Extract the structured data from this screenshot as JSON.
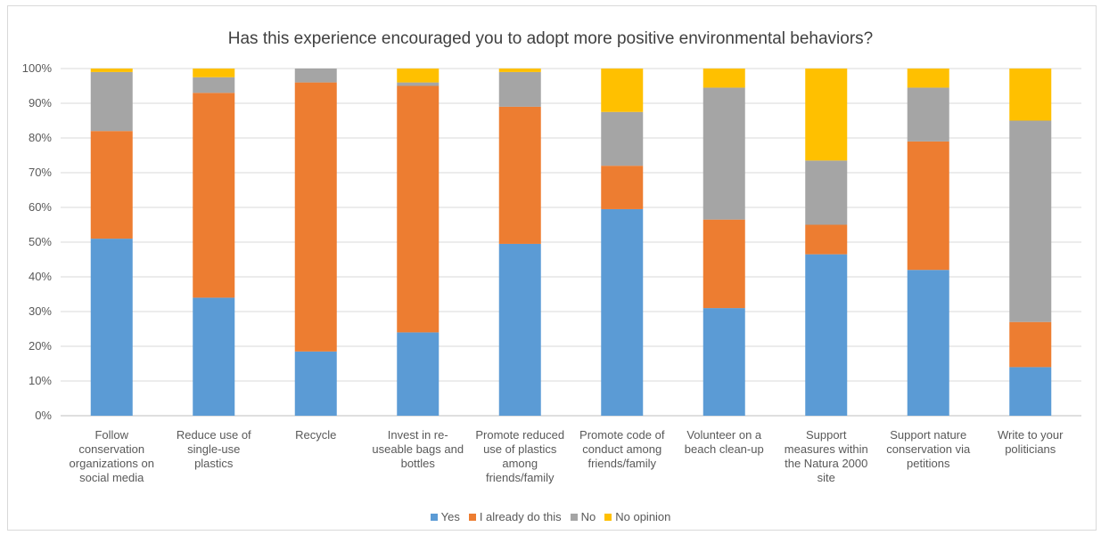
{
  "chart_data": {
    "type": "bar",
    "stacked": true,
    "percent_stacked": true,
    "title": "Has this experience encouraged you to adopt more positive environmental behaviors?",
    "y_ticks": [
      "0%",
      "10%",
      "20%",
      "30%",
      "40%",
      "50%",
      "60%",
      "70%",
      "80%",
      "90%",
      "100%"
    ],
    "ylim": [
      0,
      100
    ],
    "grid": true,
    "legend_position": "bottom",
    "categories": [
      [
        "Follow",
        "conservation",
        "organizations on",
        "social media"
      ],
      [
        "Reduce use of",
        "single-use",
        "plastics"
      ],
      [
        "Recycle"
      ],
      [
        "Invest in re-",
        "useable bags and",
        "bottles"
      ],
      [
        "Promote reduced",
        "use of plastics",
        "among",
        "friends/family"
      ],
      [
        "Promote code of",
        "conduct among",
        "friends/family"
      ],
      [
        "Volunteer on a",
        "beach clean-up"
      ],
      [
        "Support",
        "measures within",
        "the Natura 2000",
        "site"
      ],
      [
        "Support nature",
        "conservation via",
        "petitions"
      ],
      [
        "Write to your",
        "politicians"
      ]
    ],
    "series": [
      {
        "name": "Yes",
        "color": "#5b9bd5",
        "values": [
          51,
          34,
          18.5,
          24,
          49.5,
          59.5,
          31,
          46.5,
          42,
          14
        ]
      },
      {
        "name": "I already do this",
        "color": "#ed7d31",
        "values": [
          31,
          59,
          77.5,
          71,
          39.5,
          12.5,
          25.5,
          8.5,
          37,
          13
        ]
      },
      {
        "name": "No",
        "color": "#a5a5a5",
        "values": [
          17,
          4.5,
          4,
          1,
          10,
          15.5,
          38,
          18.5,
          15.5,
          58
        ]
      },
      {
        "name": "No opinion",
        "color": "#ffc000",
        "values": [
          1,
          2.5,
          0,
          4,
          1,
          12.5,
          5.5,
          26.5,
          5.5,
          15
        ]
      }
    ]
  }
}
